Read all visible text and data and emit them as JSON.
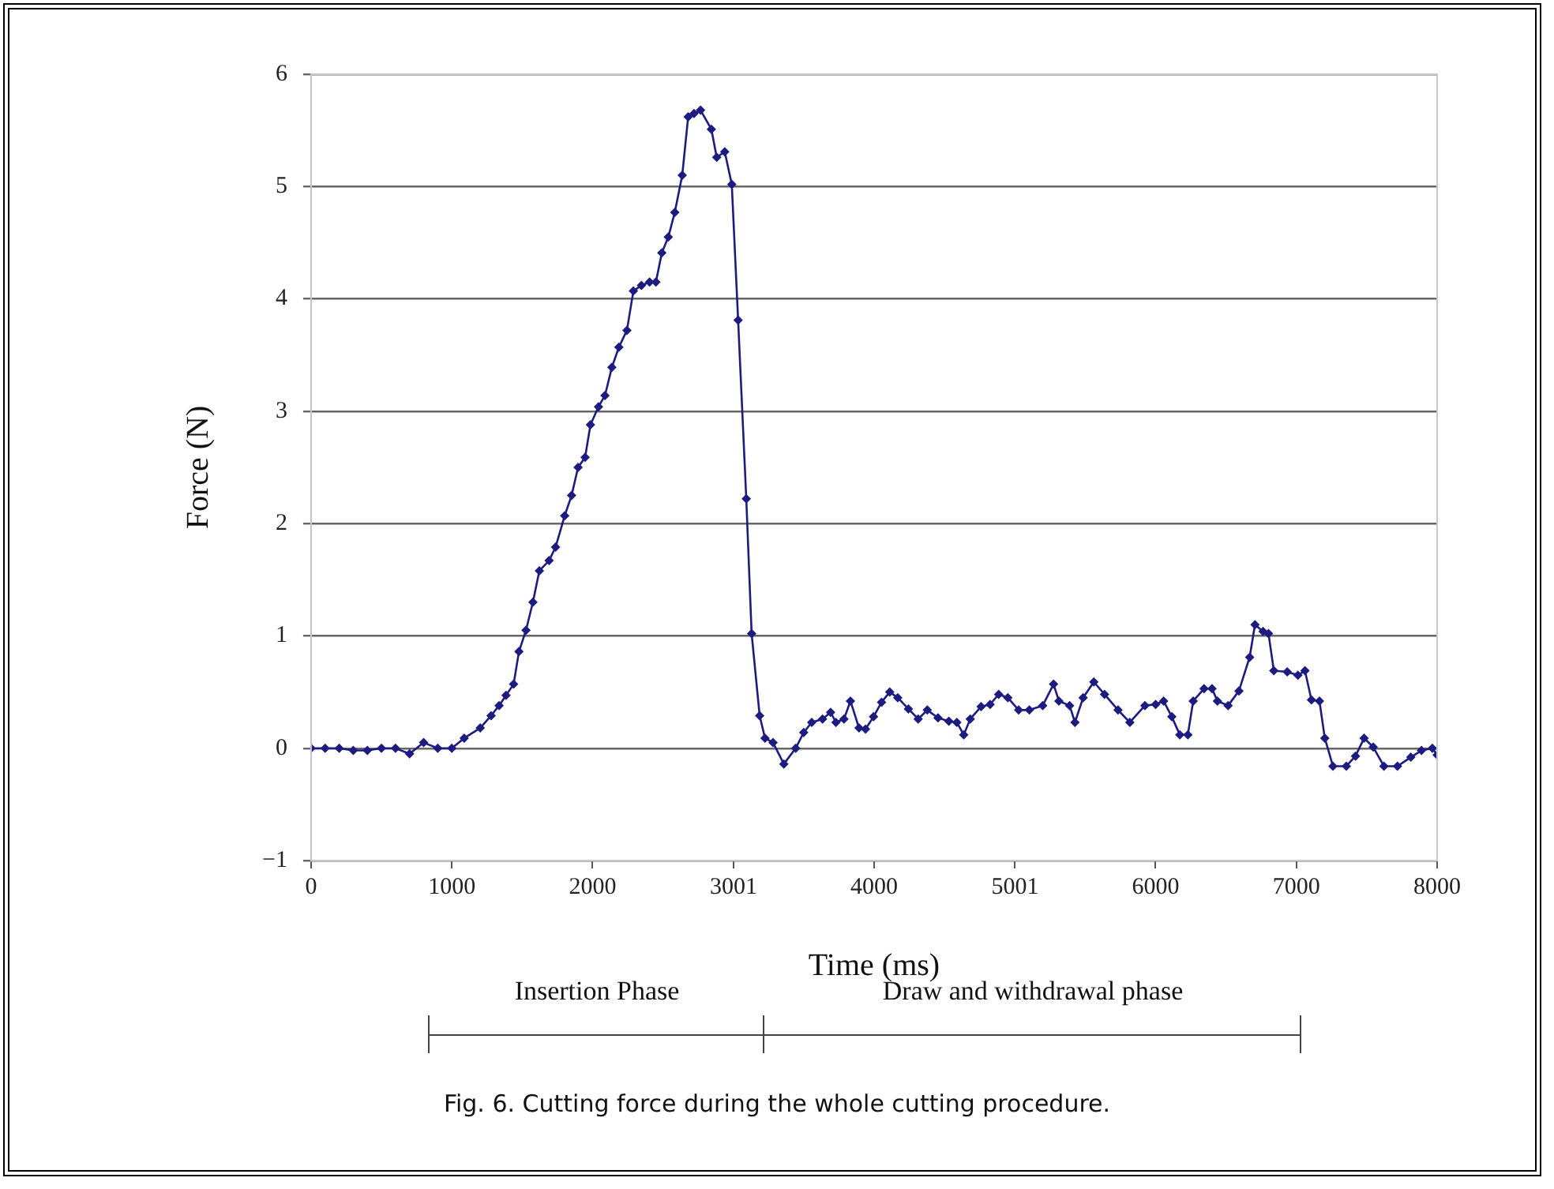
{
  "chart_data": {
    "type": "line",
    "xlabel": "Time (ms)",
    "ylabel": "Force (N)",
    "xlim": [
      0,
      8000
    ],
    "xticks": [
      0,
      1000,
      2000,
      3001,
      4000,
      5001,
      6000,
      7000,
      8000
    ],
    "ylim": [
      -1,
      6
    ],
    "yticks": [
      -1,
      0,
      1,
      2,
      3,
      4,
      5,
      6
    ],
    "grid": "y",
    "legend": false,
    "marker": "diamond",
    "line_style": "solid",
    "annotations": [
      "Insertion Phase",
      "Draw and withdrawal phase",
      "Fig. 6. Cutting force during the whole cutting procedure."
    ],
    "series": [
      {
        "color": "#1c1c80",
        "x": [
          0,
          100,
          200,
          300,
          400,
          500,
          600,
          700,
          800,
          900,
          1000,
          1088,
          1202,
          1279,
          1336,
          1385,
          1439,
          1477,
          1527,
          1576,
          1622,
          1691,
          1737,
          1802,
          1851,
          1897,
          1947,
          1985,
          2042,
          2088,
          2137,
          2187,
          2244,
          2290,
          2347,
          2405,
          2450,
          2492,
          2538,
          2584,
          2637,
          2679,
          2721,
          2767,
          2844,
          2882,
          2939,
          2989,
          3034,
          3092,
          3130,
          3187,
          3225,
          3282,
          3359,
          3443,
          3500,
          3557,
          3634,
          3691,
          3729,
          3786,
          3832,
          3893,
          3939,
          3996,
          4053,
          4111,
          4168,
          4244,
          4313,
          4378,
          4454,
          4531,
          4588,
          4637,
          4683,
          4760,
          4824,
          4885,
          4950,
          5027,
          5103,
          5198,
          5275,
          5313,
          5389,
          5427,
          5485,
          5561,
          5637,
          5733,
          5817,
          5924,
          6000,
          6057,
          6115,
          6172,
          6229,
          6267,
          6344,
          6401,
          6439,
          6515,
          6592,
          6668,
          6706,
          6763,
          6802,
          6840,
          6935,
          7011,
          7061,
          7107,
          7164,
          7202,
          7260,
          7355,
          7420,
          7481,
          7546,
          7622,
          7718,
          7813,
          7889,
          7966,
          8000
        ],
        "values": [
          0.0,
          0.0,
          0.0,
          -0.02,
          -0.02,
          0.0,
          0.0,
          -0.05,
          0.05,
          0.0,
          0.0,
          0.09,
          0.18,
          0.29,
          0.38,
          0.47,
          0.57,
          0.86,
          1.05,
          1.3,
          1.58,
          1.67,
          1.79,
          2.07,
          2.25,
          2.5,
          2.59,
          2.88,
          3.04,
          3.14,
          3.39,
          3.57,
          3.72,
          4.07,
          4.12,
          4.15,
          4.15,
          4.41,
          4.55,
          4.77,
          5.1,
          5.62,
          5.65,
          5.68,
          5.51,
          5.26,
          5.31,
          5.02,
          3.81,
          2.22,
          1.02,
          0.29,
          0.09,
          0.05,
          -0.14,
          0.0,
          0.14,
          0.23,
          0.26,
          0.32,
          0.23,
          0.26,
          0.42,
          0.18,
          0.17,
          0.28,
          0.41,
          0.5,
          0.45,
          0.35,
          0.26,
          0.34,
          0.27,
          0.24,
          0.23,
          0.12,
          0.26,
          0.37,
          0.39,
          0.48,
          0.45,
          0.34,
          0.34,
          0.38,
          0.57,
          0.42,
          0.38,
          0.23,
          0.45,
          0.59,
          0.48,
          0.34,
          0.23,
          0.38,
          0.39,
          0.42,
          0.28,
          0.12,
          0.12,
          0.42,
          0.53,
          0.53,
          0.42,
          0.38,
          0.51,
          0.81,
          1.1,
          1.04,
          1.02,
          0.69,
          0.68,
          0.65,
          0.69,
          0.43,
          0.42,
          0.09,
          -0.16,
          -0.16,
          -0.07,
          0.09,
          0.01,
          -0.16,
          -0.16,
          -0.08,
          -0.02,
          0.0,
          -0.06
        ]
      }
    ]
  }
}
